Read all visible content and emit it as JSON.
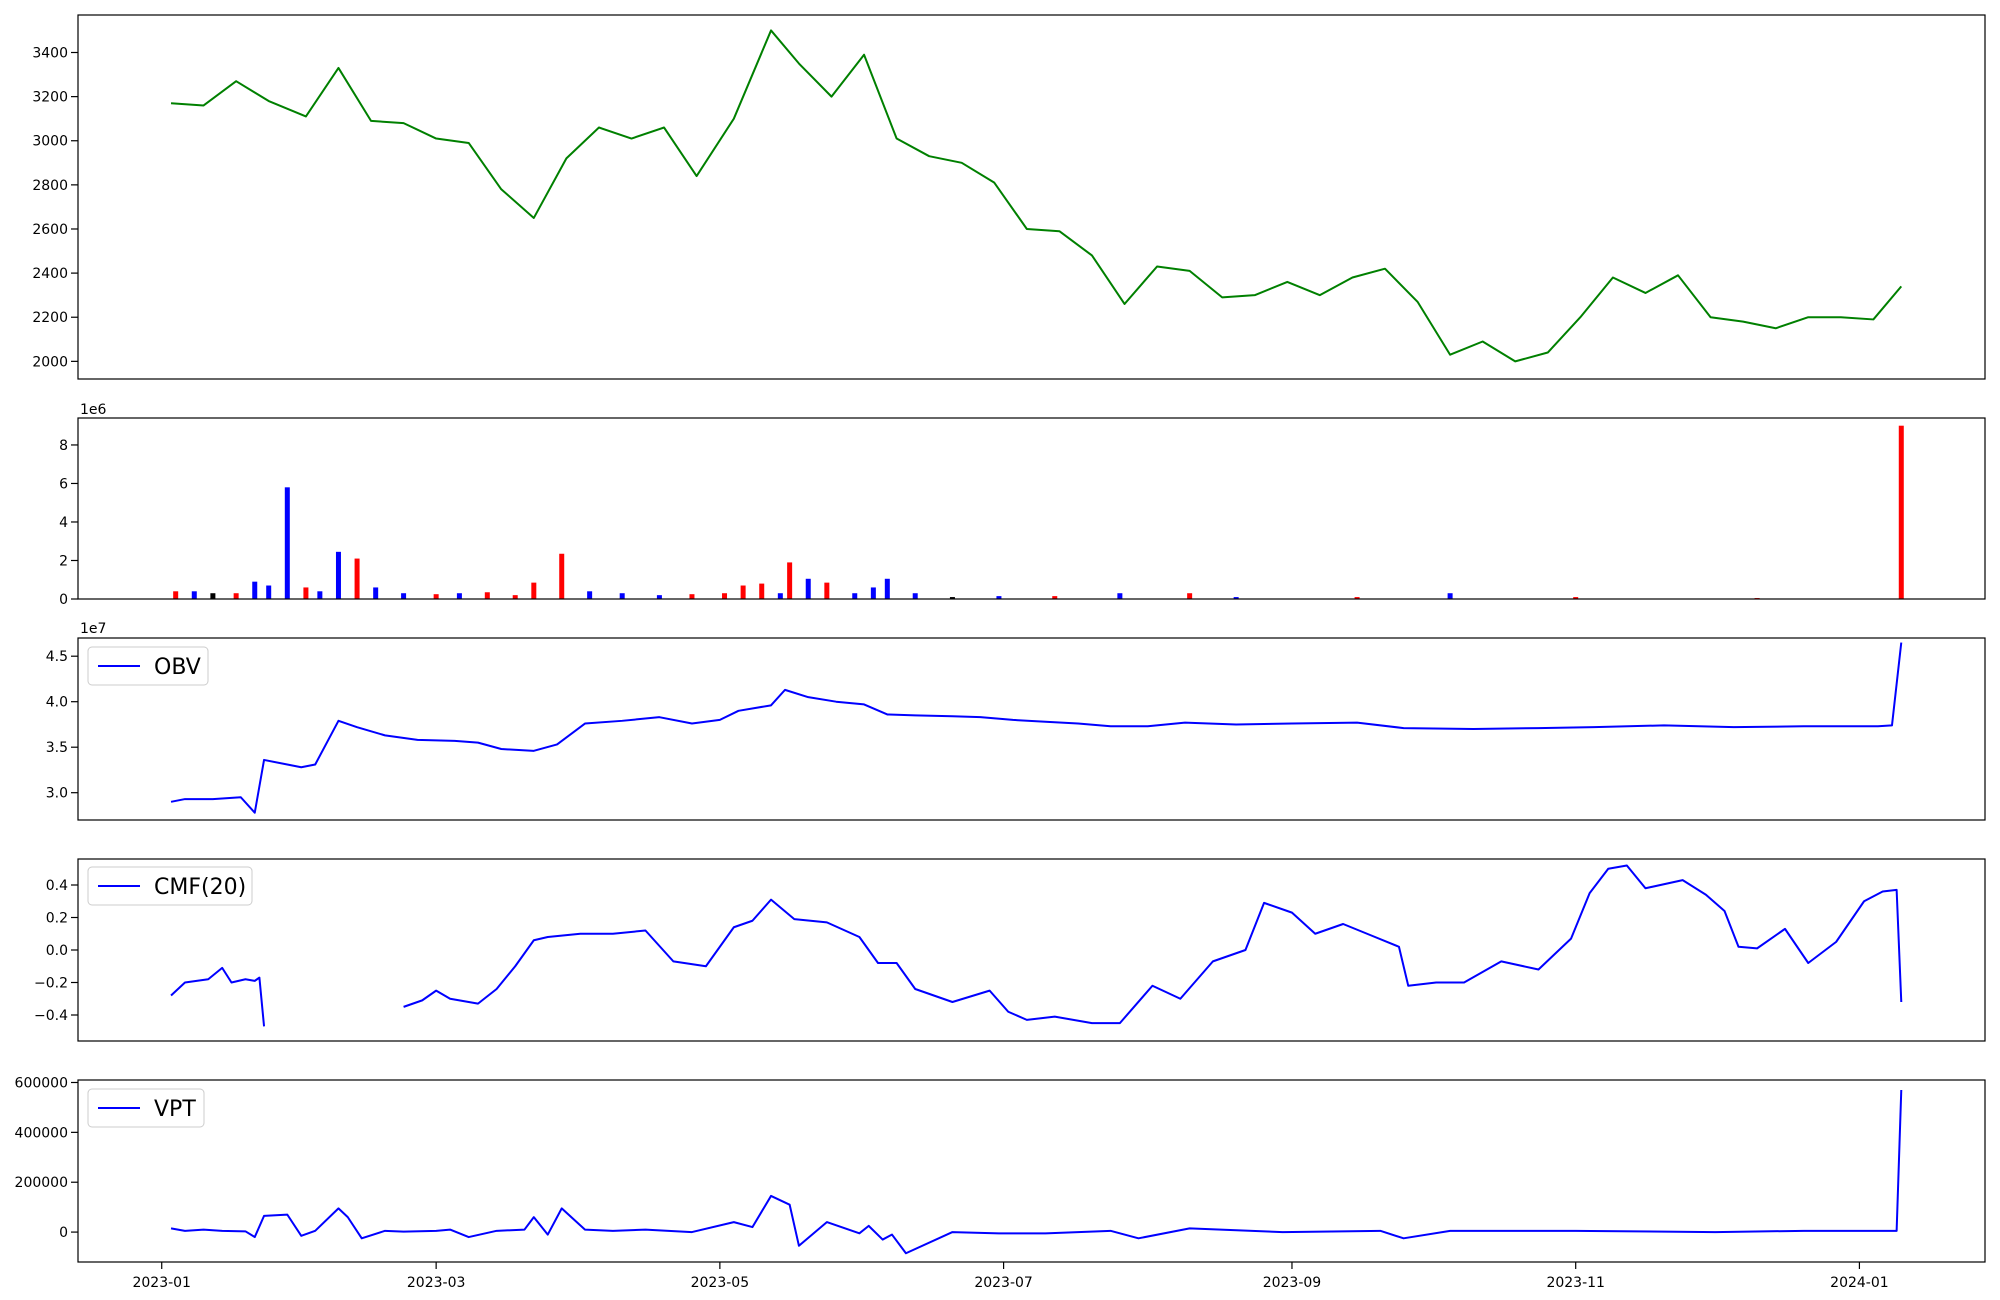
{
  "chart_data": [
    {
      "type": "line",
      "panel": "price",
      "color": "#008000",
      "ylim": [
        1920,
        3570
      ],
      "yticks": [
        2000,
        2200,
        2400,
        2600,
        2800,
        3000,
        3200,
        3400
      ],
      "ytick_labels": [
        "2000",
        "2200",
        "2400",
        "2600",
        "2800",
        "3000",
        "3200",
        "3400"
      ],
      "x": [
        "2023-01-03",
        "2023-01-10",
        "2023-01-17",
        "2023-01-24",
        "2023-02-01",
        "2023-02-08",
        "2023-02-15",
        "2023-02-22",
        "2023-03-01",
        "2023-03-08",
        "2023-03-15",
        "2023-03-22",
        "2023-03-29",
        "2023-04-05",
        "2023-04-12",
        "2023-04-19",
        "2023-04-26",
        "2023-05-04",
        "2023-05-12",
        "2023-05-18",
        "2023-05-25",
        "2023-06-01",
        "2023-06-08",
        "2023-06-15",
        "2023-06-22",
        "2023-06-29",
        "2023-07-06",
        "2023-07-13",
        "2023-07-20",
        "2023-07-27",
        "2023-08-03",
        "2023-08-10",
        "2023-08-17",
        "2023-08-24",
        "2023-08-31",
        "2023-09-07",
        "2023-09-14",
        "2023-09-21",
        "2023-09-28",
        "2023-10-05",
        "2023-10-12",
        "2023-10-19",
        "2023-10-26",
        "2023-11-02",
        "2023-11-09",
        "2023-11-16",
        "2023-11-23",
        "2023-11-30",
        "2023-12-07",
        "2023-12-14",
        "2023-12-21",
        "2023-12-28",
        "2024-01-04",
        "2024-01-10"
      ],
      "values": [
        3170,
        3160,
        3270,
        3180,
        3110,
        3330,
        3090,
        3080,
        3010,
        2990,
        2780,
        2650,
        2920,
        3060,
        3010,
        3060,
        2840,
        3100,
        3500,
        3350,
        3200,
        3390,
        3010,
        2930,
        2900,
        2810,
        2600,
        2590,
        2480,
        2260,
        2430,
        2410,
        2290,
        2300,
        2360,
        2300,
        2380,
        2420,
        2270,
        2030,
        2090,
        2000,
        2040,
        2200,
        2380,
        2310,
        2390,
        2200,
        2180,
        2150,
        2200,
        2200,
        2190,
        2340
      ]
    },
    {
      "type": "bar",
      "panel": "volume",
      "offset_label": "1e6",
      "ylim": [
        0,
        9.4
      ],
      "yticks": [
        0,
        2,
        4,
        6,
        8
      ],
      "ytick_labels": [
        "0",
        "2",
        "4",
        "6",
        "8"
      ],
      "colors": {
        "up": "#ff0000",
        "down": "#0000ff",
        "flat": "#000000"
      },
      "x": [
        "2023-01-04",
        "2023-01-08",
        "2023-01-12",
        "2023-01-17",
        "2023-01-21",
        "2023-01-24",
        "2023-01-28",
        "2023-02-01",
        "2023-02-04",
        "2023-02-08",
        "2023-02-12",
        "2023-02-16",
        "2023-02-22",
        "2023-03-01",
        "2023-03-06",
        "2023-03-12",
        "2023-03-18",
        "2023-03-22",
        "2023-03-28",
        "2023-04-03",
        "2023-04-10",
        "2023-04-18",
        "2023-04-25",
        "2023-05-02",
        "2023-05-06",
        "2023-05-10",
        "2023-05-14",
        "2023-05-16",
        "2023-05-20",
        "2023-05-24",
        "2023-05-30",
        "2023-06-03",
        "2023-06-06",
        "2023-06-12",
        "2023-06-20",
        "2023-06-30",
        "2023-07-12",
        "2023-07-26",
        "2023-08-10",
        "2023-08-20",
        "2023-09-15",
        "2023-10-05",
        "2023-11-01",
        "2023-12-10",
        "2024-01-10"
      ],
      "values": [
        0.4,
        0.4,
        0.3,
        0.3,
        0.9,
        0.7,
        5.8,
        0.6,
        0.4,
        2.45,
        2.1,
        0.6,
        0.3,
        0.25,
        0.3,
        0.35,
        0.2,
        0.85,
        2.35,
        0.4,
        0.3,
        0.2,
        0.25,
        0.3,
        0.7,
        0.8,
        0.3,
        1.9,
        1.05,
        0.85,
        0.3,
        0.6,
        1.05,
        0.3,
        0.1,
        0.15,
        0.15,
        0.3,
        0.3,
        0.1,
        0.1,
        0.3,
        0.1,
        0.05,
        9.0
      ],
      "direction": [
        "up",
        "down",
        "flat",
        "up",
        "down",
        "down",
        "down",
        "up",
        "down",
        "down",
        "up",
        "down",
        "down",
        "up",
        "down",
        "up",
        "up",
        "up",
        "up",
        "down",
        "down",
        "down",
        "up",
        "up",
        "up",
        "up",
        "down",
        "up",
        "down",
        "up",
        "down",
        "down",
        "down",
        "down",
        "flat",
        "down",
        "up",
        "down",
        "up",
        "down",
        "up",
        "down",
        "up",
        "up",
        "up"
      ]
    },
    {
      "type": "line",
      "panel": "obv",
      "offset_label": "1e7",
      "legend": "OBV",
      "color": "#0000ff",
      "ylim": [
        2.7,
        4.7
      ],
      "yticks": [
        3.0,
        3.5,
        4.0,
        4.5
      ],
      "ytick_labels": [
        "3.0",
        "3.5",
        "4.0",
        "4.5"
      ],
      "x": [
        "2023-01-03",
        "2023-01-06",
        "2023-01-12",
        "2023-01-18",
        "2023-01-21",
        "2023-01-23",
        "2023-01-31",
        "2023-02-03",
        "2023-02-08",
        "2023-02-12",
        "2023-02-18",
        "2023-02-25",
        "2023-03-05",
        "2023-03-10",
        "2023-03-15",
        "2023-03-22",
        "2023-03-27",
        "2023-04-02",
        "2023-04-10",
        "2023-04-18",
        "2023-04-25",
        "2023-05-01",
        "2023-05-05",
        "2023-05-12",
        "2023-05-15",
        "2023-05-20",
        "2023-05-26",
        "2023-06-01",
        "2023-06-06",
        "2023-06-12",
        "2023-06-20",
        "2023-06-26",
        "2023-07-03",
        "2023-07-10",
        "2023-07-17",
        "2023-07-24",
        "2023-08-01",
        "2023-08-09",
        "2023-08-20",
        "2023-09-01",
        "2023-09-15",
        "2023-09-25",
        "2023-10-10",
        "2023-10-24",
        "2023-11-05",
        "2023-11-20",
        "2023-12-05",
        "2023-12-20",
        "2024-01-05",
        "2024-01-08",
        "2024-01-10"
      ],
      "values": [
        2.9,
        2.93,
        2.93,
        2.95,
        2.78,
        3.36,
        3.28,
        3.31,
        3.79,
        3.72,
        3.63,
        3.58,
        3.57,
        3.55,
        3.48,
        3.46,
        3.53,
        3.76,
        3.79,
        3.83,
        3.76,
        3.8,
        3.9,
        3.96,
        4.13,
        4.05,
        4.0,
        3.97,
        3.86,
        3.85,
        3.84,
        3.83,
        3.8,
        3.78,
        3.76,
        3.73,
        3.73,
        3.77,
        3.75,
        3.76,
        3.77,
        3.71,
        3.7,
        3.71,
        3.72,
        3.74,
        3.72,
        3.73,
        3.73,
        3.74,
        4.65
      ]
    },
    {
      "type": "line",
      "panel": "cmf",
      "legend": "CMF(20)",
      "color": "#0000ff",
      "ylim": [
        -0.56,
        0.56
      ],
      "yticks": [
        -0.4,
        -0.2,
        0.0,
        0.2,
        0.4
      ],
      "ytick_labels": [
        "−0.4",
        "−0.2",
        "0.0",
        "0.2",
        "0.4"
      ],
      "segments": [
        {
          "x": [
            "2023-01-03",
            "2023-01-06",
            "2023-01-11",
            "2023-01-14",
            "2023-01-16",
            "2023-01-19",
            "2023-01-21",
            "2023-01-22",
            "2023-01-23"
          ],
          "values": [
            -0.28,
            -0.2,
            -0.18,
            -0.11,
            -0.2,
            -0.18,
            -0.19,
            -0.17,
            -0.47
          ]
        },
        {
          "x": [
            "2023-02-22",
            "2023-02-26",
            "2023-03-01",
            "2023-03-04",
            "2023-03-10",
            "2023-03-14",
            "2023-03-18",
            "2023-03-22",
            "2023-03-25",
            "2023-04-01",
            "2023-04-08",
            "2023-04-15",
            "2023-04-21",
            "2023-04-28",
            "2023-05-04",
            "2023-05-08",
            "2023-05-12",
            "2023-05-17",
            "2023-05-24",
            "2023-05-31",
            "2023-06-04",
            "2023-06-08",
            "2023-06-12",
            "2023-06-20",
            "2023-06-28",
            "2023-07-02",
            "2023-07-06",
            "2023-07-12",
            "2023-07-20",
            "2023-07-26",
            "2023-08-02",
            "2023-08-08",
            "2023-08-15",
            "2023-08-22",
            "2023-08-26",
            "2023-09-01",
            "2023-09-06",
            "2023-09-12",
            "2023-09-18",
            "2023-09-24",
            "2023-09-26",
            "2023-10-02",
            "2023-10-08",
            "2023-10-16",
            "2023-10-24",
            "2023-10-31",
            "2023-11-04",
            "2023-11-08",
            "2023-11-12",
            "2023-11-16",
            "2023-11-24",
            "2023-11-29",
            "2023-12-03",
            "2023-12-06",
            "2023-12-10",
            "2023-12-16",
            "2023-12-21",
            "2023-12-27",
            "2024-01-02",
            "2024-01-06",
            "2024-01-09",
            "2024-01-10"
          ],
          "values": [
            -0.35,
            -0.31,
            -0.25,
            -0.3,
            -0.33,
            -0.24,
            -0.1,
            0.06,
            0.08,
            0.1,
            0.1,
            0.12,
            -0.07,
            -0.1,
            0.14,
            0.18,
            0.31,
            0.19,
            0.17,
            0.08,
            -0.08,
            -0.08,
            -0.24,
            -0.32,
            -0.25,
            -0.38,
            -0.43,
            -0.41,
            -0.45,
            -0.45,
            -0.22,
            -0.3,
            -0.07,
            0.0,
            0.29,
            0.23,
            0.1,
            0.16,
            0.09,
            0.02,
            -0.22,
            -0.2,
            -0.2,
            -0.07,
            -0.12,
            0.07,
            0.35,
            0.5,
            0.52,
            0.38,
            0.43,
            0.34,
            0.24,
            0.02,
            0.01,
            0.13,
            -0.08,
            0.05,
            0.3,
            0.36,
            0.37,
            -0.32
          ]
        }
      ]
    },
    {
      "type": "line",
      "panel": "vpt",
      "legend": "VPT",
      "color": "#0000ff",
      "ylim": [
        -120000,
        610000
      ],
      "yticks": [
        0,
        200000,
        400000,
        600000
      ],
      "ytick_labels": [
        "0",
        "200000",
        "400000",
        "600000"
      ],
      "x": [
        "2023-01-03",
        "2023-01-06",
        "2023-01-10",
        "2023-01-14",
        "2023-01-19",
        "2023-01-21",
        "2023-01-23",
        "2023-01-28",
        "2023-01-31",
        "2023-02-03",
        "2023-02-08",
        "2023-02-10",
        "2023-02-13",
        "2023-02-18",
        "2023-02-22",
        "2023-03-01",
        "2023-03-04",
        "2023-03-08",
        "2023-03-14",
        "2023-03-20",
        "2023-03-22",
        "2023-03-25",
        "2023-03-28",
        "2023-04-02",
        "2023-04-08",
        "2023-04-15",
        "2023-04-25",
        "2023-05-04",
        "2023-05-08",
        "2023-05-12",
        "2023-05-16",
        "2023-05-18",
        "2023-05-24",
        "2023-05-31",
        "2023-06-02",
        "2023-06-05",
        "2023-06-07",
        "2023-06-10",
        "2023-06-20",
        "2023-06-30",
        "2023-07-10",
        "2023-07-17",
        "2023-07-24",
        "2023-07-30",
        "2023-08-10",
        "2023-08-30",
        "2023-09-20",
        "2023-09-25",
        "2023-10-05",
        "2023-11-01",
        "2023-12-01",
        "2023-12-20",
        "2024-01-09",
        "2024-01-10"
      ],
      "values": [
        15000,
        5000,
        10000,
        5000,
        3000,
        -20000,
        65000,
        70000,
        -15000,
        5000,
        95000,
        60000,
        -25000,
        5000,
        2000,
        5000,
        10000,
        -20000,
        5000,
        10000,
        60000,
        -10000,
        95000,
        10000,
        5000,
        10000,
        0,
        40000,
        20000,
        145000,
        110000,
        -55000,
        40000,
        -5000,
        25000,
        -30000,
        -10000,
        -85000,
        0,
        -5000,
        -5000,
        0,
        5000,
        -25000,
        15000,
        0,
        5000,
        -25000,
        5000,
        5000,
        0,
        5000,
        5000,
        570000
      ]
    }
  ],
  "x_axis": {
    "ticks": [
      "2023-01-01",
      "2023-03-01",
      "2023-05-01",
      "2023-07-01",
      "2023-09-01",
      "2023-11-01",
      "2024-01-01"
    ],
    "tick_labels": [
      "2023-01",
      "2023-03",
      "2023-05",
      "2023-07",
      "2023-09",
      "2023-11",
      "2024-01"
    ],
    "range": [
      "2022-12-14",
      "2024-01-28"
    ]
  }
}
